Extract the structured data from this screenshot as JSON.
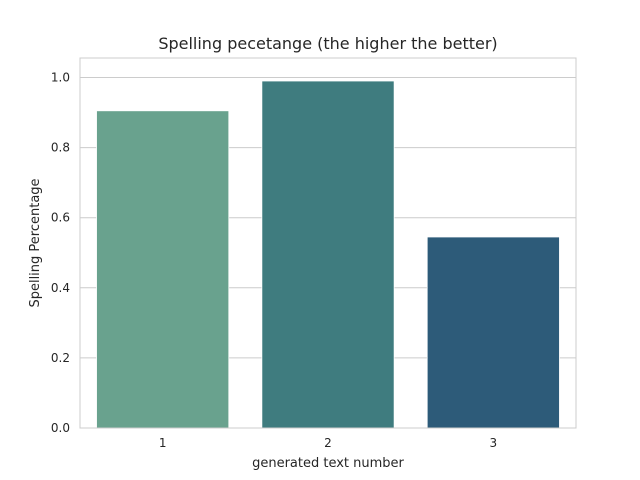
{
  "chart_data": {
    "type": "bar",
    "title": "Spelling pecetange (the higher the better)",
    "xlabel": "generated text number",
    "ylabel": "Spelling Percentage",
    "categories": [
      "1",
      "2",
      "3"
    ],
    "values": [
      0.905,
      0.99,
      0.545
    ],
    "ylim": [
      0,
      1.0556
    ],
    "yticks": [
      0.0,
      0.2,
      0.4,
      0.6,
      0.8,
      1.0
    ],
    "ytick_labels": [
      "0.0",
      "0.2",
      "0.4",
      "0.6",
      "0.8",
      "1.0"
    ],
    "colors": [
      "#69a28e",
      "#3f7c7f",
      "#2d5b79"
    ],
    "grid": true,
    "legend": "none"
  }
}
